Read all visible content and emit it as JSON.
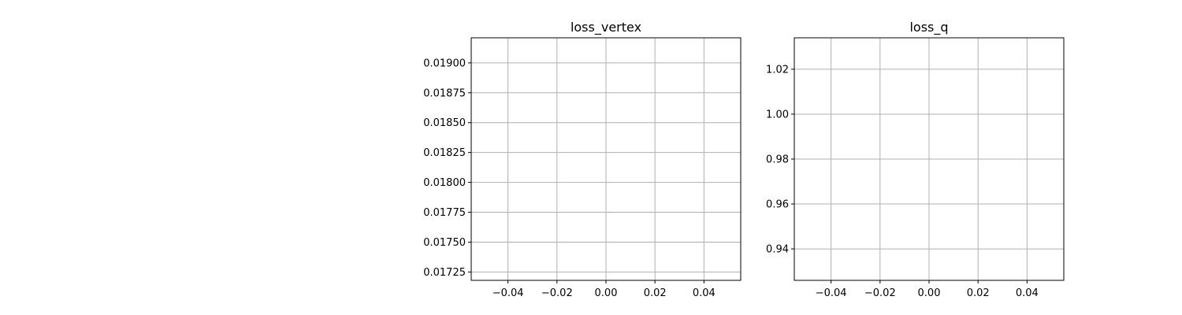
{
  "chart_data": [
    {
      "type": "line",
      "title": "loss_vertex",
      "xlabel": "",
      "ylabel": "",
      "xlim": [
        -0.055,
        0.055
      ],
      "ylim": [
        0.01718,
        0.01921
      ],
      "xticks": [
        -0.04,
        -0.02,
        0.0,
        0.02,
        0.04
      ],
      "xtick_labels": [
        "−0.04",
        "−0.02",
        "0.00",
        "0.02",
        "0.04"
      ],
      "yticks": [
        0.01725,
        0.0175,
        0.01775,
        0.018,
        0.01825,
        0.0185,
        0.01875,
        0.019
      ],
      "ytick_labels": [
        "0.01725",
        "0.01750",
        "0.01775",
        "0.01800",
        "0.01825",
        "0.01850",
        "0.01875",
        "0.01900"
      ],
      "grid": true,
      "series": []
    },
    {
      "type": "line",
      "title": "loss_q",
      "xlabel": "",
      "ylabel": "",
      "xlim": [
        -0.055,
        0.055
      ],
      "ylim": [
        0.926,
        1.034
      ],
      "xticks": [
        -0.04,
        -0.02,
        0.0,
        0.02,
        0.04
      ],
      "xtick_labels": [
        "−0.04",
        "−0.02",
        "0.00",
        "0.02",
        "0.04"
      ],
      "yticks": [
        0.94,
        0.96,
        0.98,
        1.0,
        1.02
      ],
      "ytick_labels": [
        "0.94",
        "0.96",
        "0.98",
        "1.00",
        "1.02"
      ],
      "grid": true,
      "series": []
    }
  ]
}
